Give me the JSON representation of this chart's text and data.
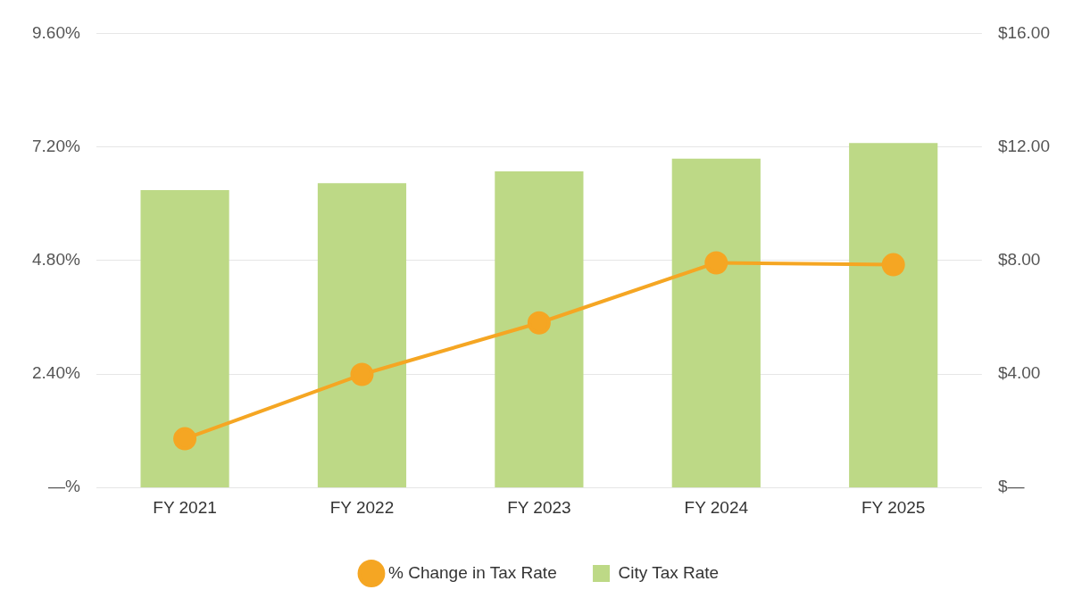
{
  "chart_data": {
    "type": "bar",
    "categories": [
      "FY 2021",
      "FY 2022",
      "FY 2023",
      "FY 2024",
      "FY 2025"
    ],
    "series": [
      {
        "name": "% Change in Tax Rate",
        "type": "line",
        "color": "#f5a623",
        "values": [
          1.03,
          2.39,
          3.48,
          4.75,
          4.71
        ]
      },
      {
        "name": "City Tax Rate",
        "axis": "y2",
        "color": "#bdd986",
        "values": [
          10.48,
          10.72,
          11.14,
          11.59,
          12.14
        ]
      }
    ],
    "ylim": [
      0,
      9.6
    ],
    "yticks": [
      {
        "value": 0,
        "label": "—%"
      },
      {
        "value": 2.4,
        "label": "2.40%"
      },
      {
        "value": 4.8,
        "label": "4.80%"
      },
      {
        "value": 7.2,
        "label": "7.20%"
      },
      {
        "value": 9.6,
        "label": "9.60%"
      }
    ],
    "y2lim": [
      0,
      16
    ],
    "y2ticks": [
      {
        "value": 0,
        "label": "$—"
      },
      {
        "value": 4,
        "label": "$4.00"
      },
      {
        "value": 8,
        "label": "$8.00"
      },
      {
        "value": 12,
        "label": "$12.00"
      },
      {
        "value": 16,
        "label": "$16.00"
      }
    ],
    "grid": "y",
    "legend": "bottom",
    "marker": "circle"
  }
}
